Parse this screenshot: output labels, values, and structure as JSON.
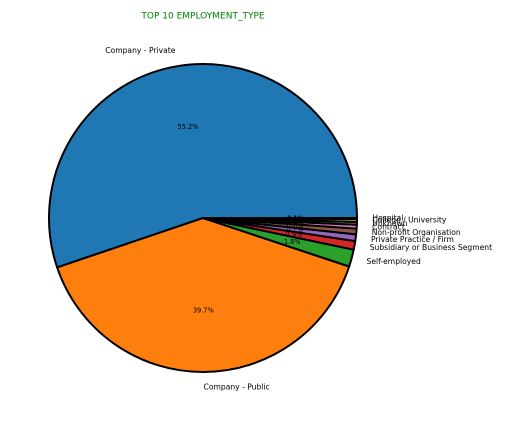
{
  "chart_data": {
    "type": "pie",
    "title": "TOP 10 EMPLOYMENT_TYPE",
    "title_color": "#008000",
    "edge_color": "#000000",
    "slices": [
      {
        "label": "Company - Private",
        "value": 55.2,
        "pct_label": "55.2%",
        "color": "#1f77b4"
      },
      {
        "label": "Company - Public",
        "value": 39.7,
        "pct_label": "39.7%",
        "color": "#ff7f0e"
      },
      {
        "label": "Self-employed",
        "value": 1.8,
        "pct_label": "1.8%",
        "color": "#2ca02c"
      },
      {
        "label": "Subsidiary or Business Segment",
        "value": 0.9,
        "pct_label": "0.9%",
        "color": "#d62728"
      },
      {
        "label": "Private Practice / Firm",
        "value": 0.7,
        "pct_label": "0.7%",
        "color": "#9467bd"
      },
      {
        "label": "Non-profit Organisation",
        "value": 0.6,
        "pct_label": "0.6%",
        "color": "#8c564b"
      },
      {
        "label": "Contract",
        "value": 0.4,
        "pct_label": "0.4%",
        "color": "#e377c2"
      },
      {
        "label": "Unknown",
        "value": 0.3,
        "pct_label": "0.3%",
        "color": "#7f7f7f"
      },
      {
        "label": "College / University",
        "value": 0.3,
        "pct_label": "0.3%",
        "color": "#bcbd22"
      },
      {
        "label": "Hospital",
        "value": 0.1,
        "pct_label": "0.1%",
        "color": "#17becf"
      }
    ]
  }
}
